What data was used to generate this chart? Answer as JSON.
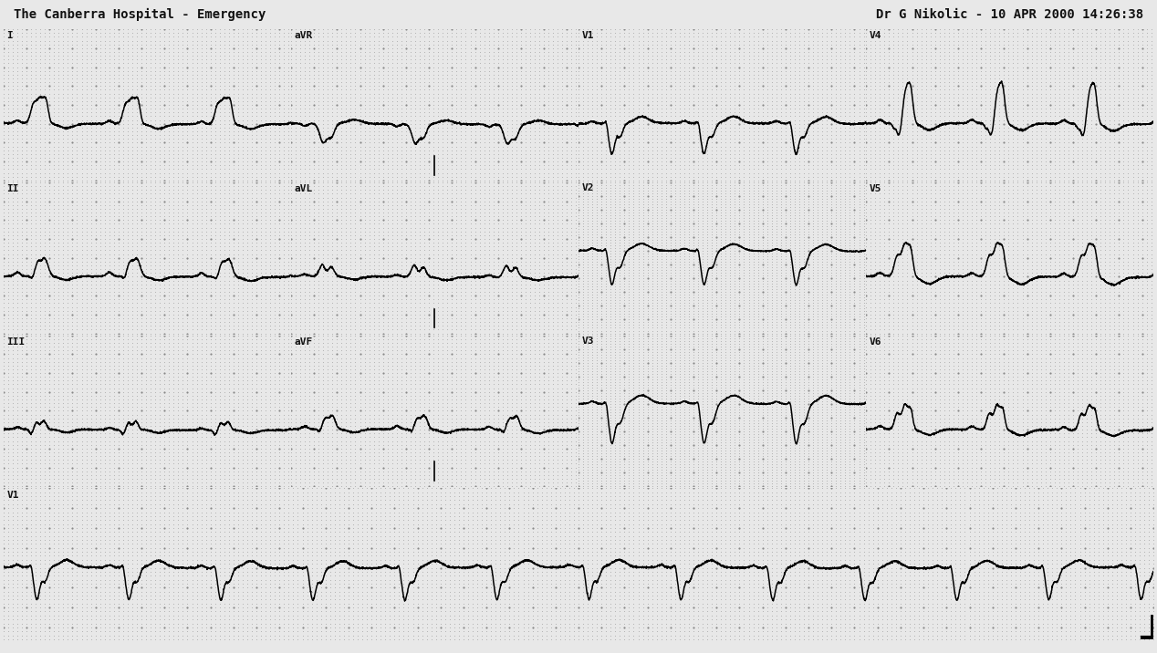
{
  "header_left": "The Canberra Hospital - Emergency",
  "header_right": "Dr G Nikolic - 10 APR 2000 14:26:38",
  "bg_color": "#e8e8e8",
  "dot_minor_color": "#b0b0b0",
  "dot_major_color": "#888888",
  "trace_color": "#000000",
  "text_color": "#111111",
  "fig_width": 12.68,
  "fig_height": 7.16,
  "dpi": 100,
  "heart_rate": 75,
  "leads_row0": [
    "I",
    "aVR",
    "V1",
    "V4"
  ],
  "leads_row1": [
    "II",
    "aVL",
    "V2",
    "V5"
  ],
  "leads_row2": [
    "III",
    "aVF",
    "V3",
    "V6"
  ],
  "leads_row3": [
    "V1"
  ],
  "fs": 500,
  "duration_col": 2.5,
  "duration_rhythm": 10.0
}
